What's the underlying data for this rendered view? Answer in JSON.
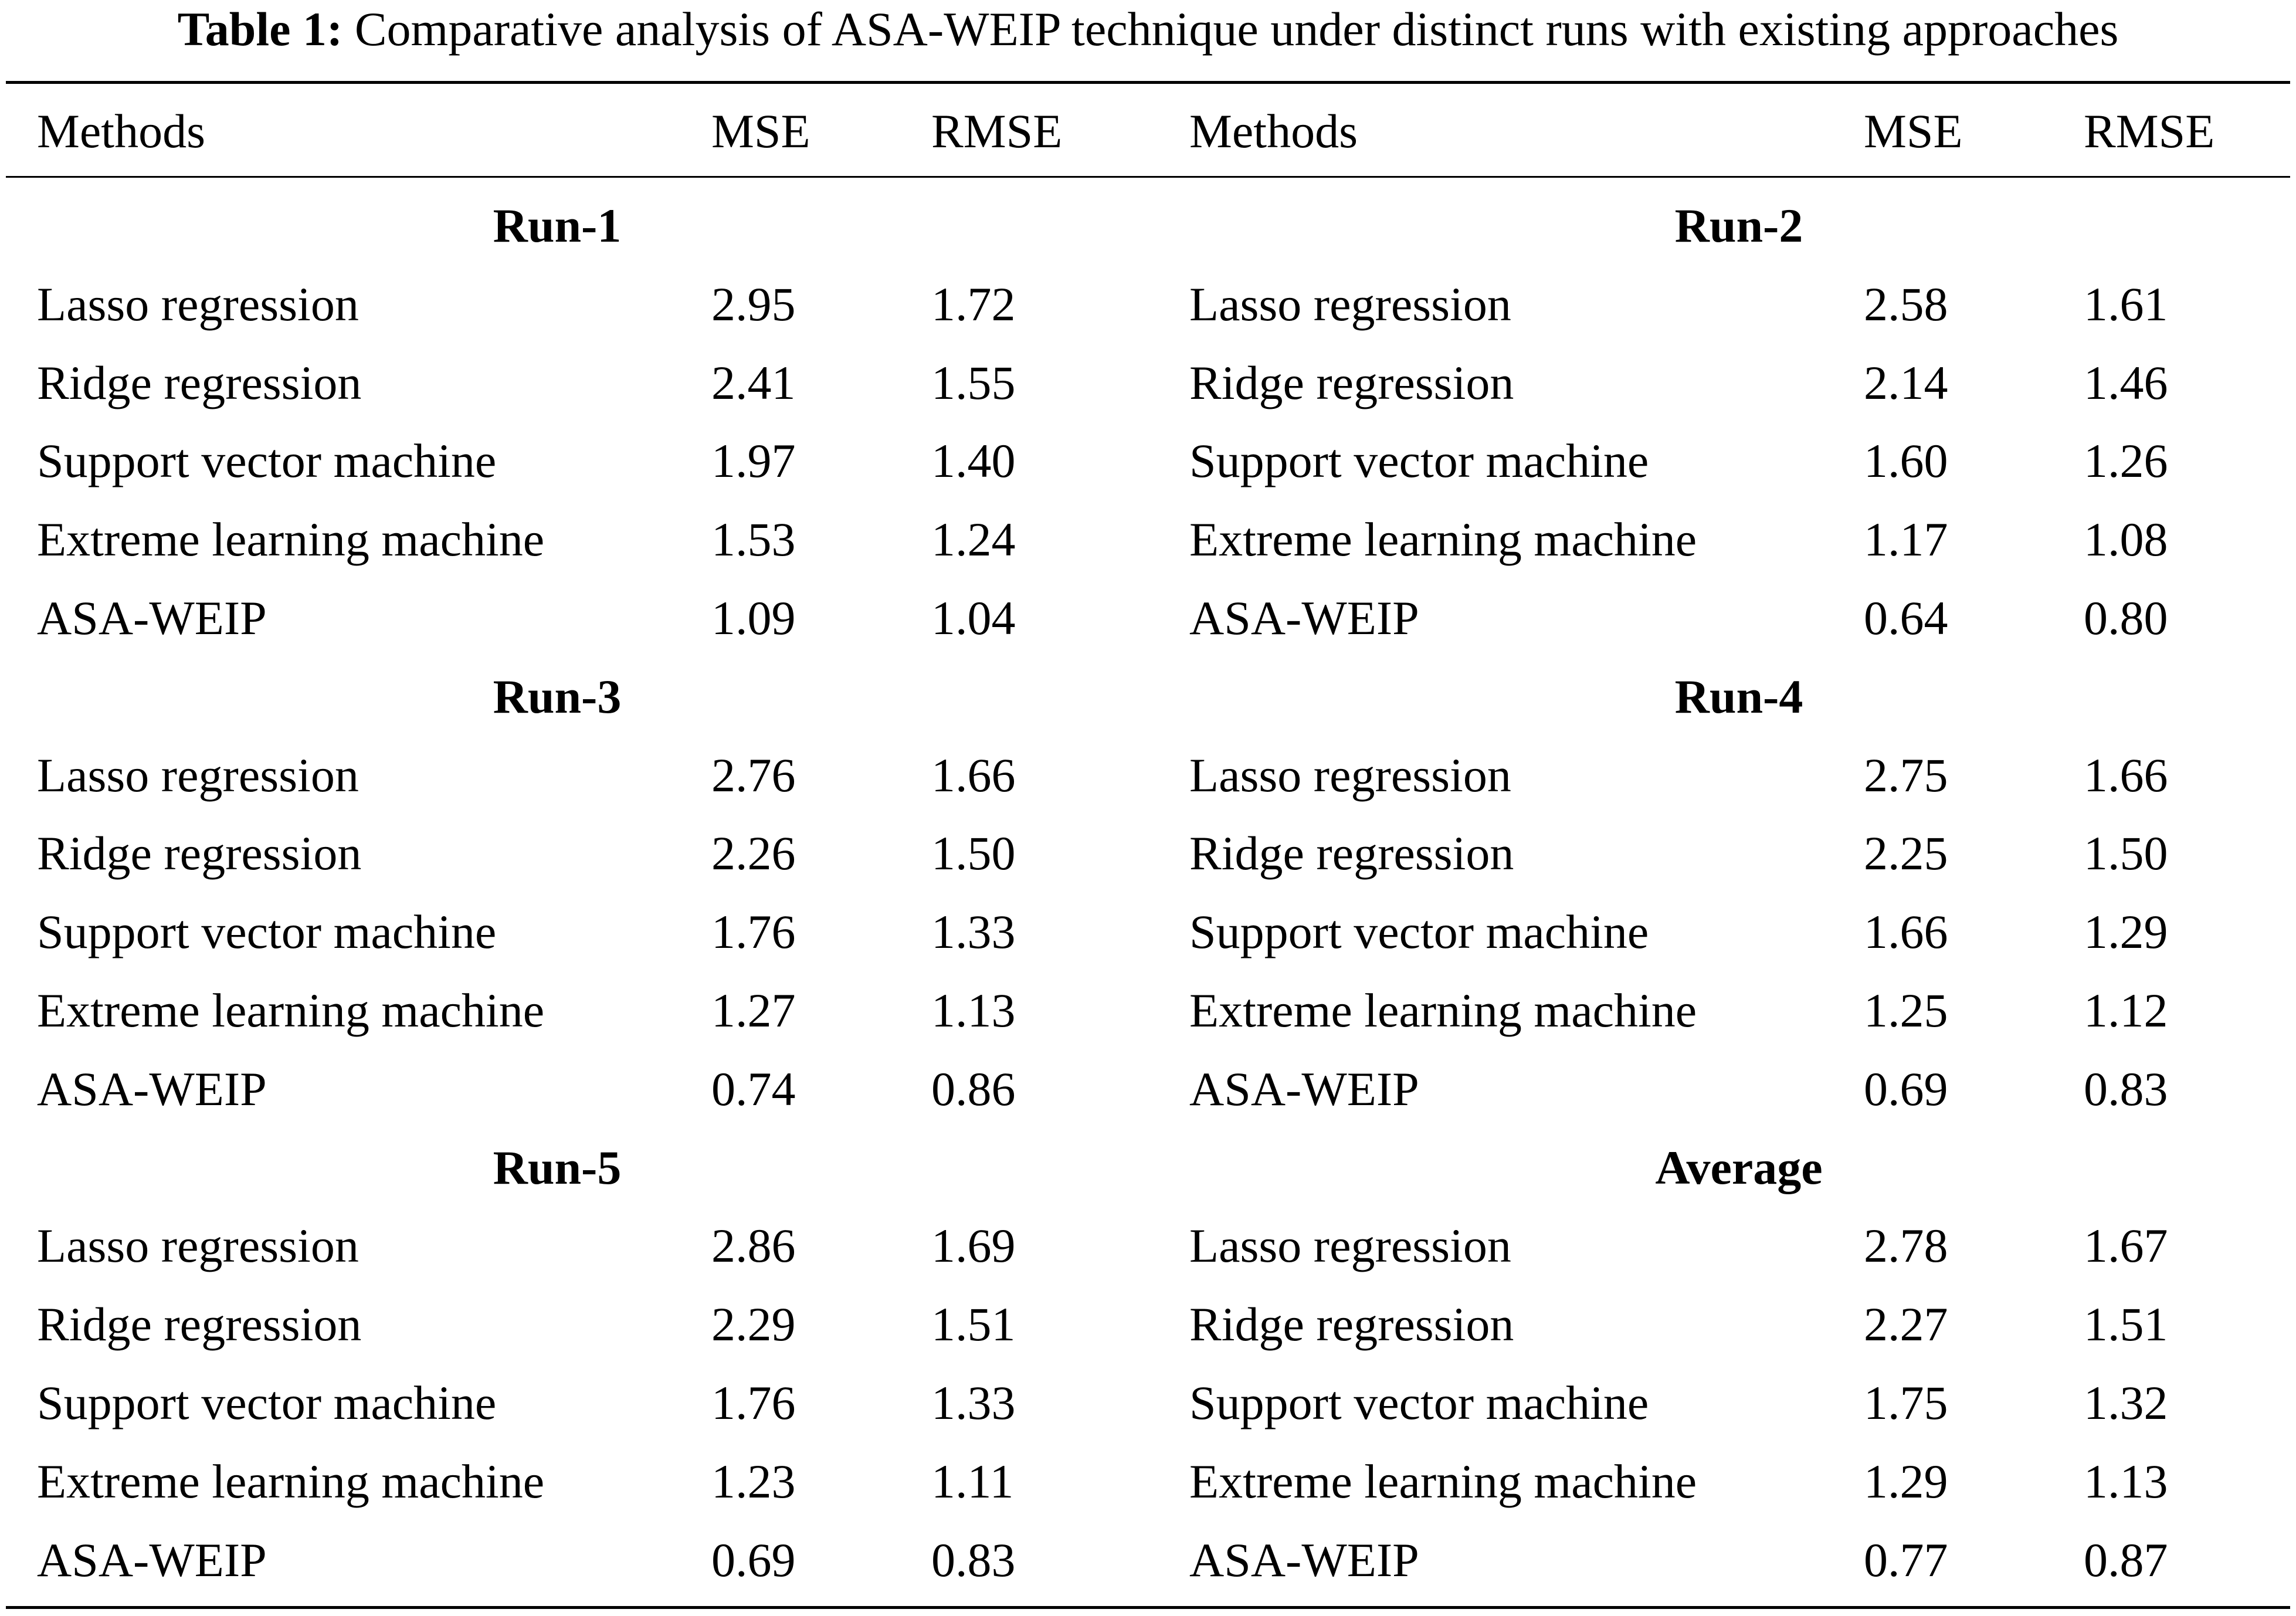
{
  "caption": {
    "label": "Table 1:",
    "text": "Comparative analysis of ASA-WEIP technique under distinct runs with existing approaches"
  },
  "headers": {
    "methods_left": "Methods",
    "mse_left": "MSE",
    "rmse_left": "RMSE",
    "methods_right": "Methods",
    "mse_right": "MSE",
    "rmse_right": "RMSE"
  },
  "groups": [
    {
      "left": {
        "title": "Run-1",
        "rows": [
          {
            "method": "Lasso regression",
            "mse": "2.95",
            "rmse": "1.72"
          },
          {
            "method": "Ridge regression",
            "mse": "2.41",
            "rmse": "1.55"
          },
          {
            "method": "Support vector machine",
            "mse": "1.97",
            "rmse": "1.40"
          },
          {
            "method": "Extreme learning machine",
            "mse": "1.53",
            "rmse": "1.24"
          },
          {
            "method": "ASA-WEIP",
            "mse": "1.09",
            "rmse": "1.04"
          }
        ]
      },
      "right": {
        "title": "Run-2",
        "rows": [
          {
            "method": "Lasso regression",
            "mse": "2.58",
            "rmse": "1.61"
          },
          {
            "method": "Ridge regression",
            "mse": "2.14",
            "rmse": "1.46"
          },
          {
            "method": "Support vector machine",
            "mse": "1.60",
            "rmse": "1.26"
          },
          {
            "method": "Extreme learning machine",
            "mse": "1.17",
            "rmse": "1.08"
          },
          {
            "method": "ASA-WEIP",
            "mse": "0.64",
            "rmse": "0.80"
          }
        ]
      }
    },
    {
      "left": {
        "title": "Run-3",
        "rows": [
          {
            "method": "Lasso regression",
            "mse": "2.76",
            "rmse": "1.66"
          },
          {
            "method": "Ridge regression",
            "mse": "2.26",
            "rmse": "1.50"
          },
          {
            "method": "Support vector machine",
            "mse": "1.76",
            "rmse": "1.33"
          },
          {
            "method": "Extreme learning machine",
            "mse": "1.27",
            "rmse": "1.13"
          },
          {
            "method": "ASA-WEIP",
            "mse": "0.74",
            "rmse": "0.86"
          }
        ]
      },
      "right": {
        "title": "Run-4",
        "rows": [
          {
            "method": "Lasso regression",
            "mse": "2.75",
            "rmse": "1.66"
          },
          {
            "method": "Ridge regression",
            "mse": "2.25",
            "rmse": "1.50"
          },
          {
            "method": "Support vector machine",
            "mse": "1.66",
            "rmse": "1.29"
          },
          {
            "method": "Extreme learning machine",
            "mse": "1.25",
            "rmse": "1.12"
          },
          {
            "method": "ASA-WEIP",
            "mse": "0.69",
            "rmse": "0.83"
          }
        ]
      }
    },
    {
      "left": {
        "title": "Run-5",
        "rows": [
          {
            "method": "Lasso regression",
            "mse": "2.86",
            "rmse": "1.69"
          },
          {
            "method": "Ridge regression",
            "mse": "2.29",
            "rmse": "1.51"
          },
          {
            "method": "Support vector machine",
            "mse": "1.76",
            "rmse": "1.33"
          },
          {
            "method": "Extreme learning machine",
            "mse": "1.23",
            "rmse": "1.11"
          },
          {
            "method": "ASA-WEIP",
            "mse": "0.69",
            "rmse": "0.83"
          }
        ]
      },
      "right": {
        "title": "Average",
        "rows": [
          {
            "method": "Lasso regression",
            "mse": "2.78",
            "rmse": "1.67"
          },
          {
            "method": "Ridge regression",
            "mse": "2.27",
            "rmse": "1.51"
          },
          {
            "method": "Support vector machine",
            "mse": "1.75",
            "rmse": "1.32"
          },
          {
            "method": "Extreme learning machine",
            "mse": "1.29",
            "rmse": "1.13"
          },
          {
            "method": "ASA-WEIP",
            "mse": "0.77",
            "rmse": "0.87"
          }
        ]
      }
    }
  ]
}
